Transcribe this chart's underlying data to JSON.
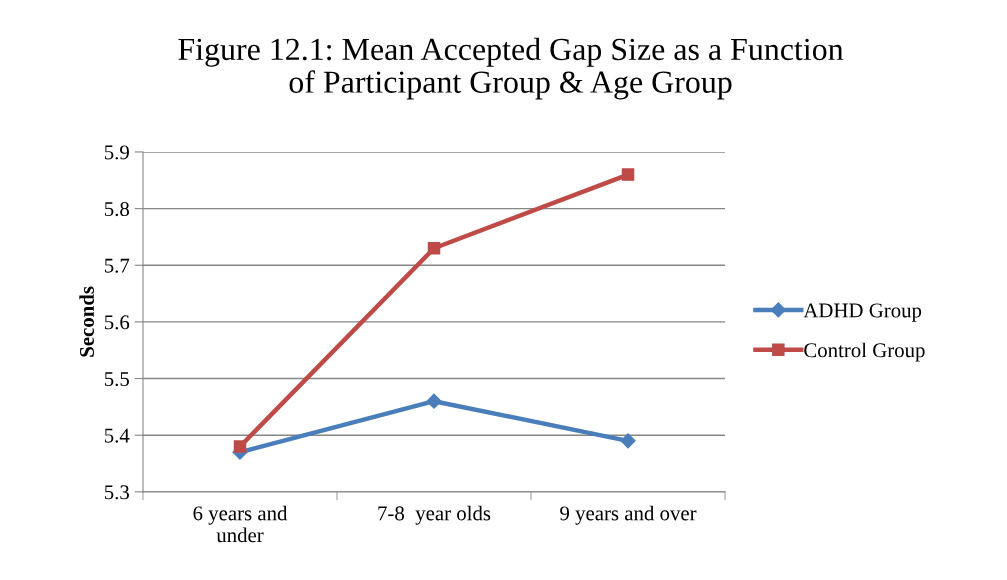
{
  "chart_data": {
    "type": "line",
    "title": "Figure 12.1: Mean Accepted Gap Size as a Function\nof Participant Group & Age Group",
    "ylabel": "Seconds",
    "categories": [
      "6 years and\nunder",
      "7-8  year olds",
      "9 years and over"
    ],
    "series": [
      {
        "name": "ADHD Group",
        "color": "#4a7ebb",
        "marker": "diamond",
        "values": [
          5.37,
          5.46,
          5.39
        ]
      },
      {
        "name": "Control Group",
        "color": "#be4b48",
        "marker": "square",
        "values": [
          5.38,
          5.73,
          5.86
        ]
      }
    ],
    "ylim": [
      5.3,
      5.9
    ],
    "yticks": [
      {
        "value": 5.3,
        "label": "5.3"
      },
      {
        "value": 5.4,
        "label": "5.4"
      },
      {
        "value": 5.5,
        "label": "5.5"
      },
      {
        "value": 5.6,
        "label": "5.6"
      },
      {
        "value": 5.7,
        "label": "5.7"
      },
      {
        "value": 5.8,
        "label": "5.8"
      },
      {
        "value": 5.9,
        "label": "5.9"
      }
    ],
    "grid": "y",
    "legend": "right",
    "line_style": "solid"
  }
}
